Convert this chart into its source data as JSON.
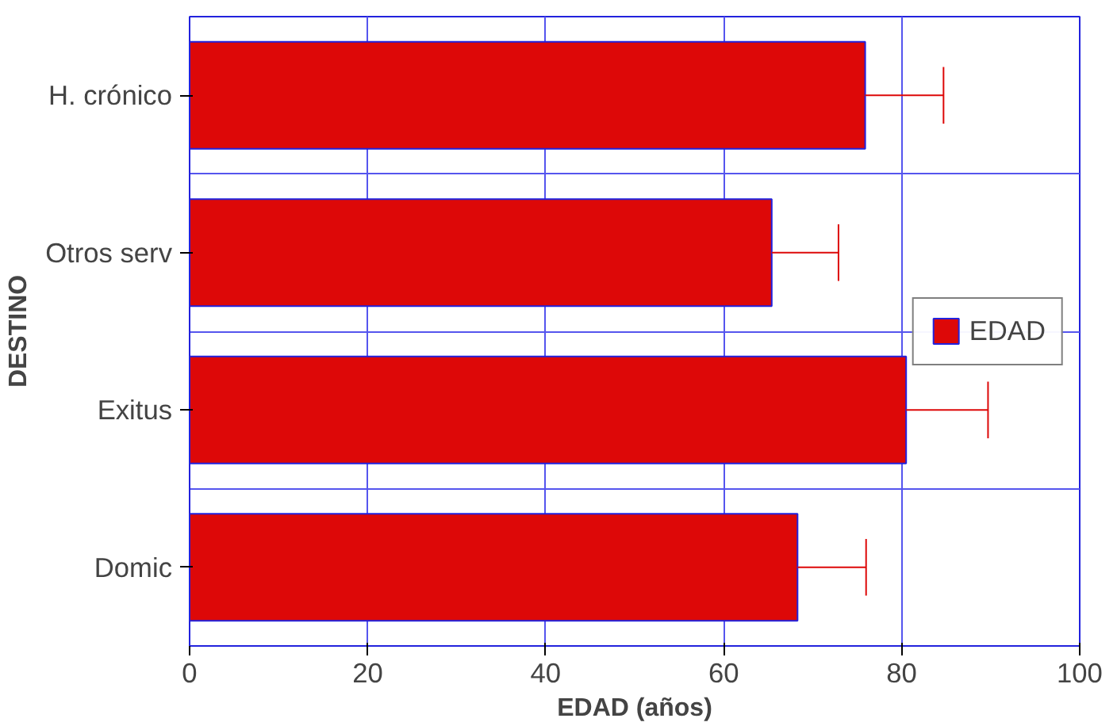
{
  "chart_data": {
    "type": "bar",
    "orientation": "horizontal",
    "xlabel": "EDAD (años)",
    "ylabel": "DESTINO",
    "categories": [
      "H. crónico",
      "Otros serv",
      "Exitus",
      "Domic"
    ],
    "series": [
      {
        "name": "EDAD",
        "color": "#dd0808",
        "values": [
          75.9,
          65.4,
          80.5,
          68.3
        ],
        "errors": [
          [
            75.9,
            84.7
          ],
          [
            65.4,
            72.9
          ],
          [
            80.5,
            89.7
          ],
          [
            68.3,
            76.0
          ]
        ]
      }
    ],
    "xlim": [
      0,
      100
    ],
    "xticks": [
      0,
      20,
      40,
      60,
      80,
      100
    ],
    "grid": true,
    "legend": "right"
  }
}
